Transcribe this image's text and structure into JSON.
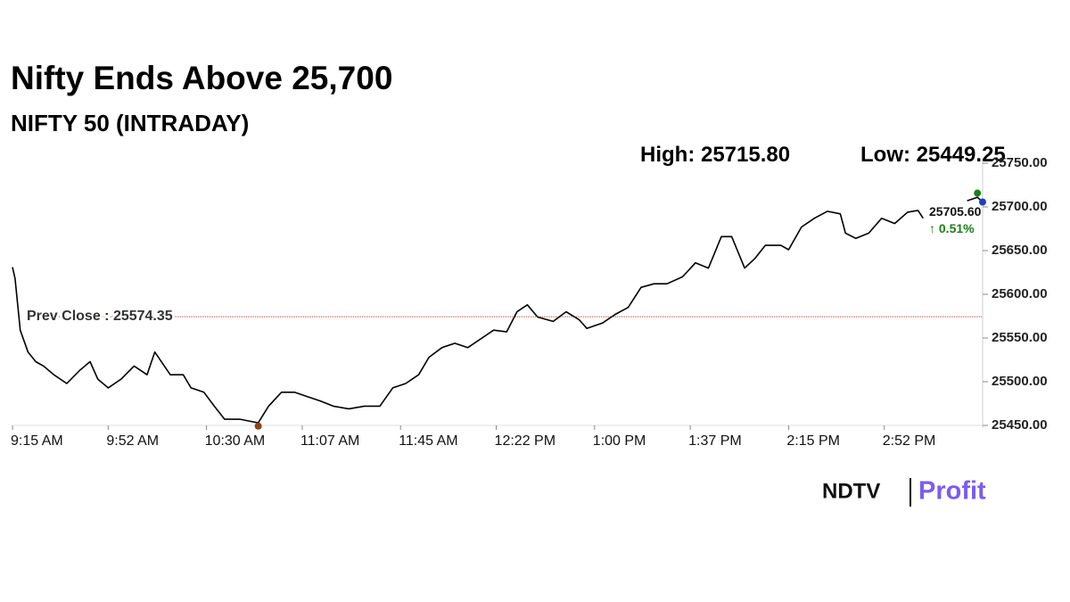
{
  "chart_data": {
    "type": "line",
    "title": "Nifty Ends Above 25,700",
    "subtitle": "NIFTY 50 (INTRADAY)",
    "high_label": "High:",
    "high": {
      "value": 25715.8,
      "label": "25715.80"
    },
    "low_label": "Low:",
    "low": {
      "value": 25449.25,
      "label": "25449.25"
    },
    "prev_close_label": "Prev Close :",
    "prev_close": {
      "value": 25574.35,
      "label": "25574.35"
    },
    "last": {
      "value": 25705.6,
      "label": "25705.60"
    },
    "change": {
      "value": 0.51,
      "label": "↑ 0.51%"
    },
    "brand": [
      "NDTV",
      "Profit"
    ],
    "x": [
      "9:15 AM",
      "9:16 AM",
      "9:18 AM",
      "9:21 AM",
      "9:24 AM",
      "9:27 AM",
      "9:31 AM",
      "9:36 AM",
      "9:41 AM",
      "9:45 AM",
      "9:48 AM",
      "9:52 AM",
      "9:57 AM",
      "10:02 AM",
      "10:07 AM",
      "10:10 AM",
      "10:16 AM",
      "10:21 AM",
      "10:24 AM",
      "10:29 AM",
      "10:33 AM",
      "10:37 AM",
      "10:43 AM",
      "10:50 AM",
      "10:54 AM",
      "10:59 AM",
      "11:04 AM",
      "11:09 AM",
      "11:14 AM",
      "11:19 AM",
      "11:25 AM",
      "11:31 AM",
      "11:37 AM",
      "11:42 AM",
      "11:47 AM",
      "11:52 AM",
      "11:56 AM",
      "12:01 PM",
      "12:06 PM",
      "12:11 PM",
      "12:16 PM",
      "12:21 PM",
      "12:26 PM",
      "12:30 PM",
      "12:34 PM",
      "12:38 PM",
      "12:44 PM",
      "12:49 PM",
      "12:54 PM",
      "12:57 PM",
      "1:03 PM",
      "1:08 PM",
      "1:13 PM",
      "1:18 PM",
      "1:23 PM",
      "1:28 PM",
      "1:34 PM",
      "1:39 PM",
      "1:44 PM",
      "1:49 PM",
      "1:53 PM",
      "1:58 PM",
      "2:02 PM",
      "2:06 PM",
      "2:12 PM",
      "2:15 PM",
      "2:20 PM",
      "2:25 PM",
      "2:30 PM",
      "2:35 PM",
      "2:37 PM",
      "2:41 PM",
      "2:46 PM",
      "2:51 PM",
      "2:56 PM",
      "3:01 PM",
      "3:05 PM",
      "3:07 PM",
      "3:15 PM",
      "3:24 PM",
      "3:28 PM",
      "3:30 PM"
    ],
    "series": [
      {
        "name": "NIFTY 50",
        "color": "#000000",
        "values": [
          25631,
          25618,
          25559,
          25534,
          25523,
          25518,
          25508,
          25498,
          25513,
          25523,
          25503,
          25493,
          25503,
          25518,
          25508,
          25534,
          25508,
          25508,
          25493,
          25488,
          25472,
          25457,
          25457,
          25453,
          25472,
          25488,
          25488,
          25483,
          25478,
          25472,
          25469,
          25472,
          25472,
          25493,
          25498,
          25508,
          25528,
          25539,
          25544,
          25539,
          25549,
          25559,
          25557,
          25580,
          25588,
          25574,
          25569,
          25580,
          25571,
          25561,
          25567,
          25577,
          25585,
          25608,
          25612,
          25612,
          25620,
          25636,
          25630,
          25666,
          25666,
          25630,
          25641,
          25656,
          25656,
          25651,
          25677,
          25687,
          25695,
          25692,
          25670,
          25664,
          25670,
          25687,
          25681,
          25694,
          25696,
          25687,
          null,
          25707,
          25711,
          25705.6
        ]
      }
    ],
    "xlim": [
      "9:15 AM",
      "3:30 PM"
    ],
    "xticks": [
      "9:15 AM",
      "9:52 AM",
      "10:30 AM",
      "11:07 AM",
      "11:45 AM",
      "12:22 PM",
      "1:00 PM",
      "1:37 PM",
      "2:15 PM",
      "2:52 PM"
    ],
    "ylim": [
      25450,
      25750
    ],
    "yticks": [
      {
        "value": 25450,
        "label": "25450.00"
      },
      {
        "value": 25500,
        "label": "25500.00"
      },
      {
        "value": 25550,
        "label": "25550.00"
      },
      {
        "value": 25600,
        "label": "25600.00"
      },
      {
        "value": 25650,
        "label": "25650.00"
      },
      {
        "value": 25700,
        "label": "25700.00"
      },
      {
        "value": 25750,
        "label": "25750.00"
      }
    ],
    "grid": false,
    "high_color": "#1a7f1a",
    "low_color": "#8b4513",
    "last_color": "#1f3fbf",
    "prev_close_color": "#b03a2e",
    "change_color": "#1a7f1a"
  }
}
